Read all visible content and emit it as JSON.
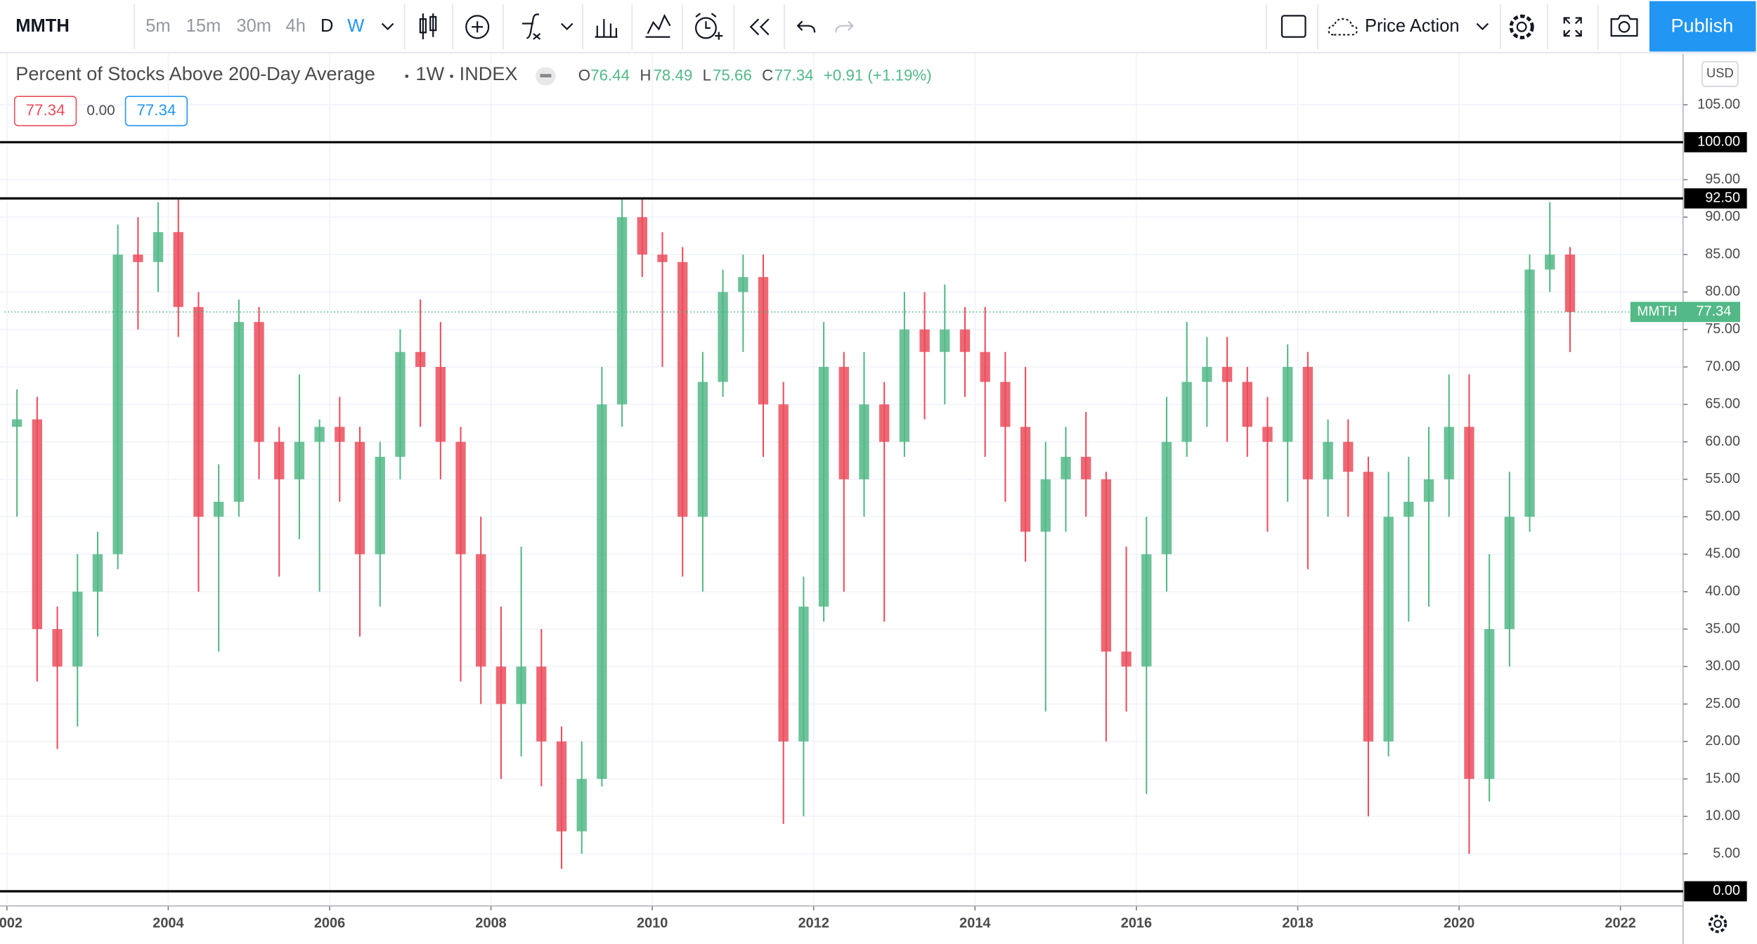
{
  "toolbar": {
    "symbol": "MMTH",
    "intervals": [
      "5m",
      "15m",
      "30m",
      "4h",
      "D",
      "W"
    ],
    "layout": "Price Action",
    "publish": "Publish"
  },
  "legend": {
    "title": "Percent of Stocks Above 200-Day Average",
    "interval": "1W",
    "exchange": "INDEX",
    "ohlc": [
      {
        "label": "O",
        "value": "76.44"
      },
      {
        "label": "H",
        "value": "78.49"
      },
      {
        "label": "L",
        "value": "75.66"
      },
      {
        "label": "C",
        "value": "77.34"
      }
    ],
    "change": "+0.91 (+1.19%)",
    "pills": [
      "77.34",
      "0.00",
      "77.34"
    ]
  },
  "currency": "USD",
  "chart_data": {
    "type": "candlestick",
    "x": [
      2002.125,
      2002.375,
      2002.625,
      2002.875,
      2003.125,
      2003.375,
      2003.625,
      2003.875,
      2004.125,
      2004.375,
      2004.625,
      2004.875,
      2005.125,
      2005.375,
      2005.625,
      2005.875,
      2006.125,
      2006.375,
      2006.625,
      2006.875,
      2007.125,
      2007.375,
      2007.625,
      2007.875,
      2008.125,
      2008.375,
      2008.625,
      2008.875,
      2009.125,
      2009.375,
      2009.625,
      2009.875,
      2010.125,
      2010.375,
      2010.625,
      2010.875,
      2011.125,
      2011.375,
      2011.625,
      2011.875,
      2012.125,
      2012.375,
      2012.625,
      2012.875,
      2013.125,
      2013.375,
      2013.625,
      2013.875,
      2014.125,
      2014.375,
      2014.625,
      2014.875,
      2015.125,
      2015.375,
      2015.625,
      2015.875,
      2016.125,
      2016.375,
      2016.625,
      2016.875,
      2017.125,
      2017.375,
      2017.625,
      2017.875,
      2018.125,
      2018.375,
      2018.625,
      2018.875,
      2019.125,
      2019.375,
      2019.625,
      2019.875,
      2020.125,
      2020.375,
      2020.625,
      2020.875,
      2021.125,
      2021.375
    ],
    "open": [
      62,
      63,
      35,
      30,
      40,
      45,
      85,
      84,
      88,
      78,
      50,
      52,
      76,
      60,
      55,
      60,
      62,
      60,
      45,
      58,
      72,
      70,
      60,
      45,
      30,
      25,
      30,
      20,
      8,
      15,
      65,
      90,
      85,
      84,
      50,
      68,
      80,
      82,
      65,
      20,
      38,
      70,
      55,
      65,
      60,
      75,
      72,
      75,
      72,
      68,
      62,
      48,
      55,
      58,
      55,
      32,
      30,
      45,
      60,
      68,
      70,
      68,
      62,
      60,
      70,
      55,
      60,
      56,
      20,
      50,
      52,
      55,
      62,
      15,
      35,
      50,
      83,
      85
    ],
    "high": [
      67,
      66,
      38,
      45,
      48,
      89,
      90,
      92,
      92.5,
      80,
      57,
      79,
      78,
      62,
      69,
      63,
      66,
      62,
      60,
      75,
      79,
      76,
      62,
      50,
      38,
      46,
      35,
      22,
      20,
      70,
      92.5,
      92.5,
      88,
      86,
      72,
      83,
      85,
      85,
      68,
      42,
      76,
      72,
      72,
      68,
      80,
      80,
      81,
      78,
      78,
      72,
      70,
      60,
      62,
      64,
      56,
      46,
      50,
      66,
      76,
      74,
      74,
      70,
      66,
      73,
      72,
      63,
      63,
      58,
      56,
      58,
      62,
      69,
      69,
      45,
      56,
      85,
      92,
      86
    ],
    "low": [
      50,
      28,
      19,
      22,
      34,
      43,
      75,
      80,
      74,
      40,
      32,
      50,
      55,
      42,
      47,
      40,
      52,
      34,
      38,
      55,
      62,
      55,
      28,
      25,
      15,
      18,
      14,
      3,
      5,
      14,
      62,
      82,
      70,
      42,
      40,
      66,
      72,
      58,
      9,
      10,
      36,
      40,
      50,
      36,
      58,
      63,
      65,
      66,
      58,
      52,
      44,
      24,
      48,
      50,
      20,
      24,
      13,
      40,
      58,
      62,
      60,
      58,
      48,
      52,
      43,
      50,
      50,
      10,
      18,
      36,
      38,
      50,
      5,
      12,
      30,
      48,
      80,
      72
    ],
    "close": [
      63,
      35,
      30,
      40,
      45,
      85,
      84,
      88,
      78,
      50,
      52,
      76,
      60,
      55,
      60,
      62,
      60,
      45,
      58,
      72,
      70,
      60,
      45,
      30,
      25,
      30,
      20,
      8,
      15,
      65,
      90,
      85,
      84,
      50,
      68,
      80,
      82,
      65,
      20,
      38,
      70,
      55,
      65,
      60,
      75,
      72,
      75,
      72,
      68,
      62,
      48,
      55,
      58,
      55,
      32,
      30,
      45,
      60,
      68,
      70,
      68,
      62,
      60,
      70,
      55,
      60,
      56,
      20,
      50,
      52,
      55,
      62,
      15,
      35,
      50,
      83,
      85,
      77.34
    ],
    "up_color": "#53b987",
    "down_color": "#eb4d5c",
    "xlim": [
      2001.97,
      2022.776
    ],
    "ylim": [
      -1.95,
      111.8
    ],
    "xticks": [
      2002,
      2004,
      2006,
      2008,
      2010,
      2012,
      2014,
      2016,
      2018,
      2020,
      2022
    ],
    "yticks": [
      {
        "value": 5,
        "label": "5.00"
      },
      {
        "value": 10,
        "label": "10.00"
      },
      {
        "value": 15,
        "label": "15.00"
      },
      {
        "value": 20,
        "label": "20.00"
      },
      {
        "value": 25,
        "label": "25.00"
      },
      {
        "value": 30,
        "label": "30.00"
      },
      {
        "value": 35,
        "label": "35.00"
      },
      {
        "value": 40,
        "label": "40.00"
      },
      {
        "value": 45,
        "label": "45.00"
      },
      {
        "value": 50,
        "label": "50.00"
      },
      {
        "value": 55,
        "label": "55.00"
      },
      {
        "value": 60,
        "label": "60.00"
      },
      {
        "value": 65,
        "label": "65.00"
      },
      {
        "value": 70,
        "label": "70.00"
      },
      {
        "value": 75,
        "label": "75.00"
      },
      {
        "value": 80,
        "label": "80.00"
      },
      {
        "value": 85,
        "label": "85.00"
      },
      {
        "value": 90,
        "label": "90.00"
      },
      {
        "value": 95,
        "label": "95.00"
      },
      {
        "value": 105,
        "label": "105.00"
      }
    ],
    "hlines": [
      {
        "value": 100,
        "label": "100.00"
      },
      {
        "value": 92.5,
        "label": "92.50"
      },
      {
        "value": 0,
        "label": "0.00"
      }
    ],
    "grid": true,
    "last": {
      "name": "MMTH",
      "value": 77.34,
      "color": "#53b987"
    }
  }
}
